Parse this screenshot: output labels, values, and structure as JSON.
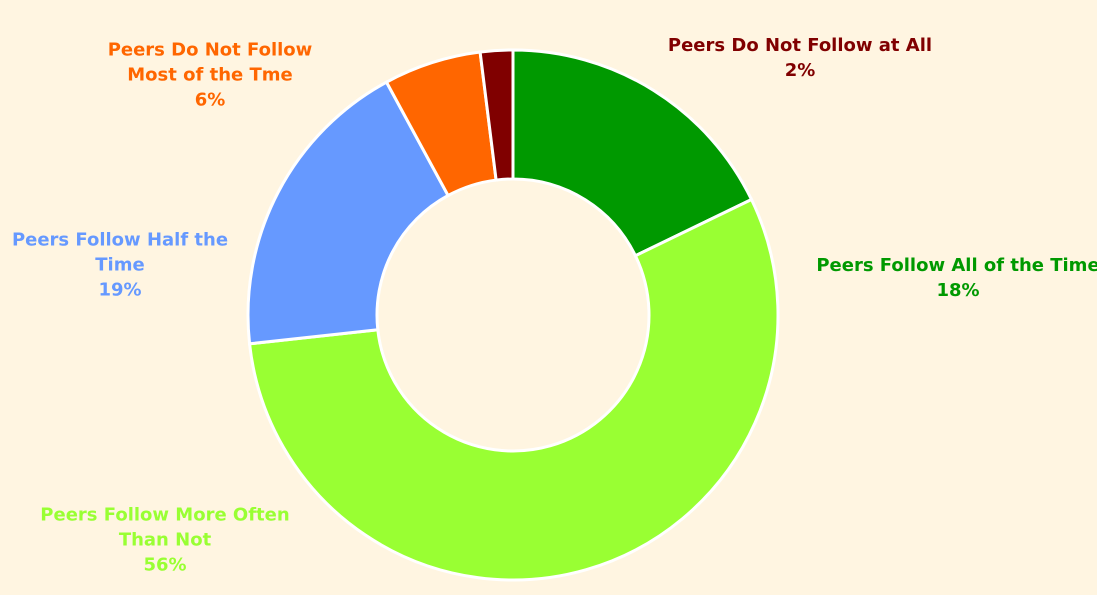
{
  "chart_data": {
    "type": "donut",
    "categories": [
      "Peers Follow All of the Time",
      "Peers Follow More Often Than Not",
      "Peers Follow Half the Time",
      "Peers Do Not Follow Most of the Tme",
      "Peers Do Not Follow at All"
    ],
    "values": [
      18,
      56,
      19,
      6,
      2
    ],
    "value_labels": [
      "18%",
      "56%",
      "19%",
      "6%",
      "2%"
    ],
    "colors": [
      "#009900",
      "#99ff33",
      "#6699ff",
      "#ff6600",
      "#800000"
    ]
  }
}
